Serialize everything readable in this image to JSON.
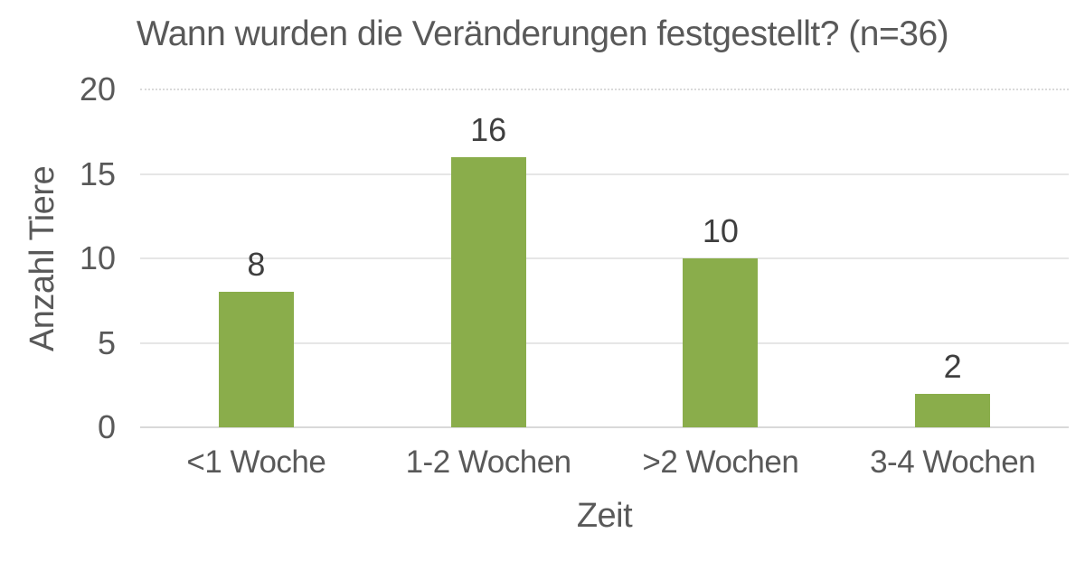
{
  "chart_data": {
    "type": "bar",
    "title": "Wann wurden die Veränderungen festgestellt? (n=36)",
    "categories": [
      "<1 Woche",
      "1-2 Wochen",
      ">2 Wochen",
      "3-4 Wochen"
    ],
    "values": [
      8,
      16,
      10,
      2
    ],
    "data_labels": [
      "8",
      "16",
      "10",
      "2"
    ],
    "xlabel": "Zeit",
    "ylabel": "Anzahl Tiere",
    "ylim": [
      0,
      20
    ],
    "yticks": [
      0,
      5,
      10,
      15,
      20
    ],
    "grid": "horizontal-only",
    "top_gridline_style": "dotted",
    "legend": "none"
  },
  "style": {
    "background": "#ffffff",
    "bar_color": "#8aad4b",
    "axis_text_color": "#595959",
    "data_label_color": "#3f3f3f",
    "gridline_color": "#e6e6e6",
    "top_gridline_color": "#dadada",
    "baseline_color": "#d9d9d9"
  }
}
